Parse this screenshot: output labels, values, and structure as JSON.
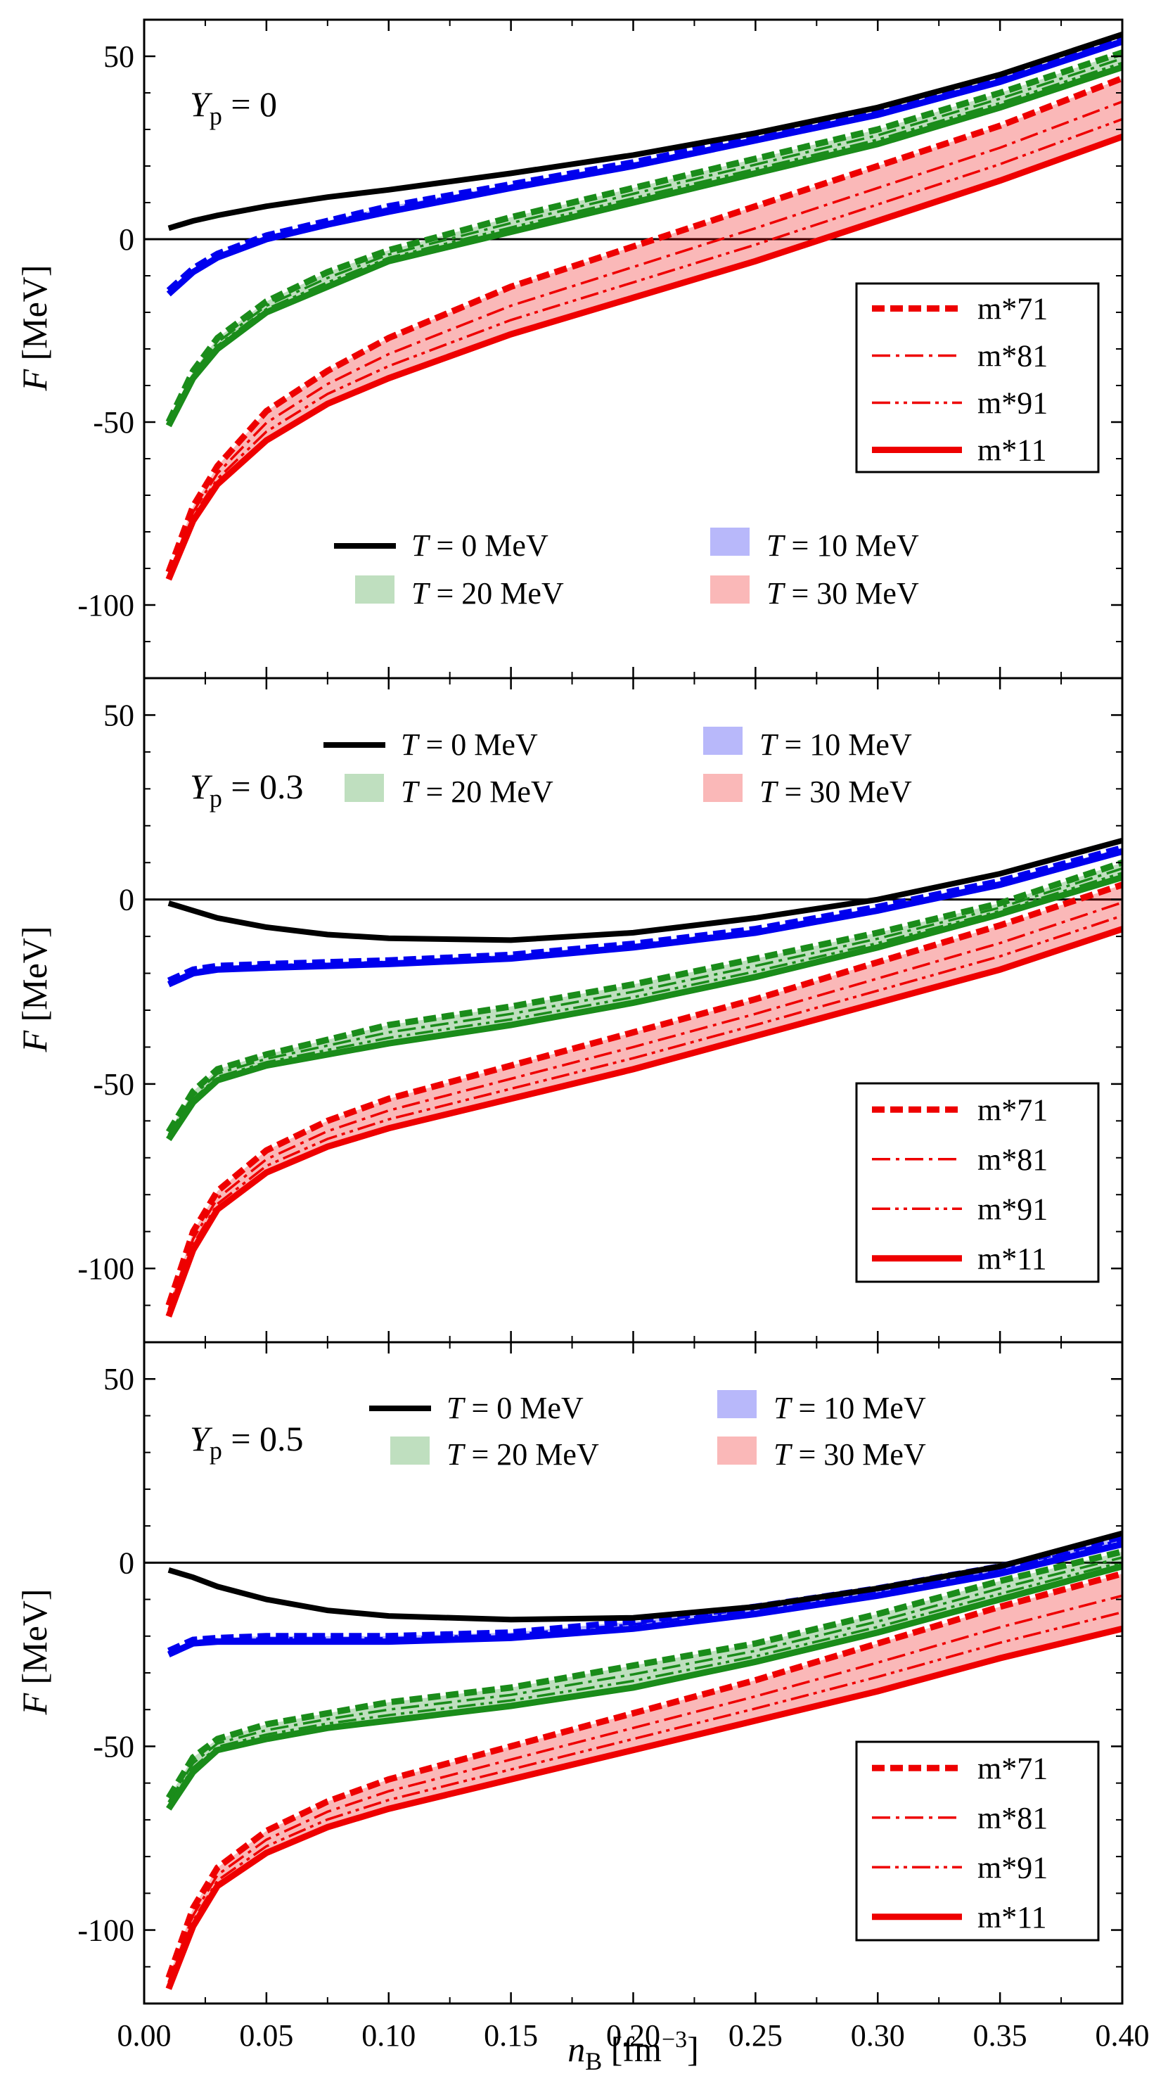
{
  "chart_data": {
    "type": "line",
    "xlabel": {
      "main": "n",
      "sub": "B",
      "unit_open": " [fm",
      "exp": "−3",
      "unit_close": "]"
    },
    "ylabel": {
      "main": "F",
      "unit": " [MeV]"
    },
    "xlim": [
      0.0,
      0.4
    ],
    "ylim": [
      -120,
      60
    ],
    "x_ticks": [
      0.0,
      0.05,
      0.1,
      0.15,
      0.2,
      0.25,
      0.3,
      0.35,
      0.4
    ],
    "x_tick_labels": [
      "0.00",
      "0.05",
      "0.10",
      "0.15",
      "0.20",
      "0.25",
      "0.30",
      "0.35",
      "0.40"
    ],
    "y_ticks": [
      50,
      0,
      -50,
      -100
    ],
    "y_tick_labels": [
      "50",
      "0",
      "-50",
      "-100"
    ],
    "temperature_legend": [
      {
        "label_T": "T",
        "label_rest": " = 0 MeV",
        "color": "#000000",
        "style": "line"
      },
      {
        "label_T": "T",
        "label_rest": " = 10 MeV",
        "color": "#0000ee",
        "style": "patch"
      },
      {
        "label_T": "T",
        "label_rest": " = 20 MeV",
        "color": "#1a8c1a",
        "style": "patch"
      },
      {
        "label_T": "T",
        "label_rest": " = 30 MeV",
        "color": "#ee0000",
        "style": "patch"
      }
    ],
    "model_legend": [
      {
        "label": "m*71",
        "dash": "dashed"
      },
      {
        "label": "m*81",
        "dash": "dashdot"
      },
      {
        "label": "m*91",
        "dash": "dashdotdot"
      },
      {
        "label": "m*11",
        "dash": "solid"
      }
    ],
    "x": [
      0.01,
      0.02,
      0.03,
      0.05,
      0.075,
      0.1,
      0.15,
      0.2,
      0.25,
      0.3,
      0.35,
      0.4
    ],
    "panels": [
      {
        "yp_main": "Y",
        "yp_sub": "p",
        "yp_value": " = 0",
        "series": [
          {
            "name": "T = 0 MeV",
            "T": 0,
            "values": [
              3,
              5,
              6.5,
              9,
              11.5,
              13.5,
              18,
              23,
              29,
              36,
              45,
              56
            ]
          },
          {
            "name": "T = 10 MeV, m*71",
            "T": 10,
            "values": [
              -14,
              -8,
              -4,
              1,
              5,
              9,
              15,
              21,
              28,
              35,
              44,
              55
            ]
          },
          {
            "name": "T = 10 MeV, m*11",
            "T": 10,
            "values": [
              -15,
              -9,
              -5,
              0,
              4,
              7.5,
              14,
              20,
              27,
              34,
              43,
              54
            ]
          },
          {
            "name": "T = 20 MeV, m*71",
            "T": 20,
            "values": [
              -50,
              -36,
              -27,
              -17,
              -9,
              -3,
              6,
              14,
              22,
              30,
              40,
              51
            ]
          },
          {
            "name": "T = 20 MeV, m*11",
            "T": 20,
            "values": [
              -51,
              -38,
              -30,
              -20,
              -13,
              -6,
              2,
              10,
              18,
              26,
              36,
              47
            ]
          },
          {
            "name": "T = 30 MeV, m*71",
            "T": 30,
            "values": [
              -91,
              -73,
              -62,
              -47,
              -36,
              -27,
              -13,
              -2,
              9,
              20,
              31,
              44
            ]
          },
          {
            "name": "T = 30 MeV, m*11",
            "T": 30,
            "values": [
              -93,
              -77,
              -67,
              -55,
              -45,
              -38,
              -26,
              -16,
              -6,
              5,
              16,
              28
            ]
          }
        ]
      },
      {
        "yp_main": "Y",
        "yp_sub": "p",
        "yp_value": " = 0.3",
        "series": [
          {
            "name": "T = 0 MeV",
            "T": 0,
            "values": [
              -1,
              -3,
              -5,
              -7.5,
              -9.5,
              -10.5,
              -11,
              -9,
              -5,
              0,
              7,
              16
            ]
          },
          {
            "name": "T = 10 MeV, m*71",
            "T": 10,
            "values": [
              -22,
              -19,
              -18,
              -17.5,
              -17,
              -16.5,
              -15,
              -12,
              -8,
              -2,
              5,
              14
            ]
          },
          {
            "name": "T = 10 MeV, m*11",
            "T": 10,
            "values": [
              -23,
              -20,
              -19,
              -18.5,
              -18,
              -17.5,
              -16,
              -13,
              -9,
              -3,
              4,
              13
            ]
          },
          {
            "name": "T = 20 MeV, m*71",
            "T": 20,
            "values": [
              -63,
              -52,
              -46,
              -42,
              -38,
              -34,
              -29,
              -23,
              -16,
              -9,
              -1,
              10
            ]
          },
          {
            "name": "T = 20 MeV, m*11",
            "T": 20,
            "values": [
              -65,
              -55,
              -49,
              -45,
              -42,
              -39,
              -34,
              -28,
              -21,
              -13,
              -4,
              6
            ]
          },
          {
            "name": "T = 30 MeV, m*71",
            "T": 30,
            "values": [
              -110,
              -90,
              -79,
              -68,
              -60,
              -54,
              -45,
              -36,
              -27,
              -17,
              -7,
              4
            ]
          },
          {
            "name": "T = 30 MeV, m*11",
            "T": 30,
            "values": [
              -113,
              -95,
              -84,
              -74,
              -67,
              -62,
              -54,
              -46,
              -37,
              -28,
              -19,
              -8
            ]
          }
        ]
      },
      {
        "yp_main": "Y",
        "yp_sub": "p",
        "yp_value": " = 0.5",
        "series": [
          {
            "name": "T = 0 MeV",
            "T": 0,
            "values": [
              -2,
              -4,
              -6.5,
              -10,
              -13,
              -14.5,
              -15.5,
              -15,
              -12,
              -7,
              -1,
              8
            ]
          },
          {
            "name": "T = 10 MeV, m*71",
            "T": 10,
            "values": [
              -24,
              -21,
              -20.5,
              -20,
              -20,
              -20,
              -19,
              -16,
              -12,
              -7,
              -1,
              7
            ]
          },
          {
            "name": "T = 10 MeV, m*11",
            "T": 10,
            "values": [
              -25,
              -22,
              -21.5,
              -21.5,
              -21.5,
              -21.5,
              -20.5,
              -18,
              -14,
              -9,
              -3,
              5
            ]
          },
          {
            "name": "T = 20 MeV, m*71",
            "T": 20,
            "values": [
              -64,
              -53,
              -48,
              -44,
              -41,
              -38,
              -34,
              -28,
              -22,
              -14,
              -5,
              3
            ]
          },
          {
            "name": "T = 20 MeV, m*11",
            "T": 20,
            "values": [
              -67,
              -57,
              -51,
              -48,
              -45,
              -43,
              -39,
              -34,
              -27,
              -19,
              -10,
              -1
            ]
          },
          {
            "name": "T = 30 MeV, m*71",
            "T": 30,
            "values": [
              -113,
              -94,
              -83,
              -73,
              -65,
              -59,
              -50,
              -41,
              -32,
              -22,
              -12,
              -3
            ]
          },
          {
            "name": "T = 30 MeV, m*11",
            "T": 30,
            "values": [
              -116,
              -99,
              -88,
              -79,
              -72,
              -67,
              -59,
              -51,
              -43,
              -35,
              -26,
              -18
            ]
          }
        ]
      }
    ]
  }
}
